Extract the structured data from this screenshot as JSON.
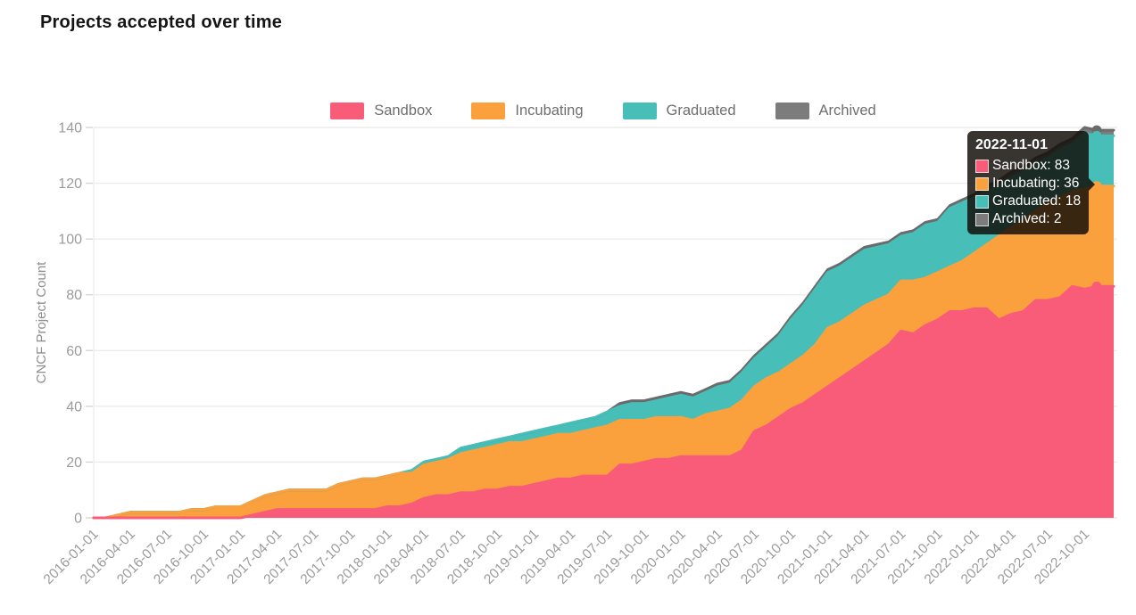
{
  "page": {
    "title": "Projects accepted over time"
  },
  "y_axis": {
    "title": "CNCF Project Count"
  },
  "tooltip": {
    "date": "2022-11-01",
    "rows": [
      {
        "label": "Sandbox",
        "value": 83
      },
      {
        "label": "Incubating",
        "value": 36
      },
      {
        "label": "Graduated",
        "value": 18
      },
      {
        "label": "Archived",
        "value": 2
      }
    ]
  },
  "chart_data": {
    "type": "area",
    "stacked": true,
    "title": "Projects accepted over time",
    "xlabel": "",
    "ylabel": "CNCF Project Count",
    "ylim": [
      0,
      140
    ],
    "y_ticks": [
      0,
      20,
      40,
      60,
      80,
      100,
      120,
      140
    ],
    "grid": "horizontal",
    "legend_position": "top",
    "x_tick_labels": [
      "2016-01-01",
      "2016-04-01",
      "2016-07-01",
      "2016-10-01",
      "2017-01-01",
      "2017-04-01",
      "2017-07-01",
      "2017-10-01",
      "2018-01-01",
      "2018-04-01",
      "2018-07-01",
      "2018-10-01",
      "2019-01-01",
      "2019-04-01",
      "2019-07-01",
      "2019-10-01",
      "2020-01-01",
      "2020-04-01",
      "2020-07-01",
      "2020-10-01",
      "2021-01-01",
      "2021-04-01",
      "2021-07-01",
      "2021-10-01",
      "2022-01-01",
      "2022-04-01",
      "2022-07-01",
      "2022-10-01"
    ],
    "categories": [
      "2016-01-01",
      "2016-02-01",
      "2016-03-01",
      "2016-04-01",
      "2016-05-01",
      "2016-06-01",
      "2016-07-01",
      "2016-08-01",
      "2016-09-01",
      "2016-10-01",
      "2016-11-01",
      "2016-12-01",
      "2017-01-01",
      "2017-02-01",
      "2017-03-01",
      "2017-04-01",
      "2017-05-01",
      "2017-06-01",
      "2017-07-01",
      "2017-08-01",
      "2017-09-01",
      "2017-10-01",
      "2017-11-01",
      "2017-12-01",
      "2018-01-01",
      "2018-02-01",
      "2018-03-01",
      "2018-04-01",
      "2018-05-01",
      "2018-06-01",
      "2018-07-01",
      "2018-08-01",
      "2018-09-01",
      "2018-10-01",
      "2018-11-01",
      "2018-12-01",
      "2019-01-01",
      "2019-02-01",
      "2019-03-01",
      "2019-04-01",
      "2019-05-01",
      "2019-06-01",
      "2019-07-01",
      "2019-08-01",
      "2019-09-01",
      "2019-10-01",
      "2019-11-01",
      "2019-12-01",
      "2020-01-01",
      "2020-02-01",
      "2020-03-01",
      "2020-04-01",
      "2020-05-01",
      "2020-06-01",
      "2020-07-01",
      "2020-08-01",
      "2020-09-01",
      "2020-10-01",
      "2020-11-01",
      "2020-12-01",
      "2021-01-01",
      "2021-02-01",
      "2021-03-01",
      "2021-04-01",
      "2021-05-01",
      "2021-06-01",
      "2021-07-01",
      "2021-08-01",
      "2021-09-01",
      "2021-10-01",
      "2021-11-01",
      "2021-12-01",
      "2022-01-01",
      "2022-02-01",
      "2022-03-01",
      "2022-04-01",
      "2022-05-01",
      "2022-06-01",
      "2022-07-01",
      "2022-08-01",
      "2022-09-01",
      "2022-10-01",
      "2022-11-01"
    ],
    "series": [
      {
        "name": "Sandbox",
        "color": "#F95C78",
        "values": [
          0,
          0,
          0,
          0,
          0,
          0,
          0,
          0,
          0,
          0,
          0,
          0,
          0,
          1,
          2,
          3,
          3,
          3,
          3,
          3,
          3,
          3,
          3,
          3,
          4,
          4,
          5,
          7,
          8,
          8,
          9,
          9,
          10,
          10,
          11,
          11,
          12,
          13,
          14,
          14,
          15,
          15,
          15,
          19,
          19,
          20,
          21,
          21,
          22,
          22,
          22,
          22,
          22,
          24,
          31,
          33,
          36,
          39,
          41,
          44,
          47,
          50,
          53,
          56,
          59,
          62,
          67,
          66,
          69,
          71,
          74,
          74,
          75,
          75,
          71,
          73,
          74,
          78,
          78,
          79,
          83,
          82,
          83
        ]
      },
      {
        "name": "Incubating",
        "color": "#FAA13D",
        "values": [
          0,
          0,
          1,
          2,
          2,
          2,
          2,
          2,
          3,
          3,
          4,
          4,
          4,
          5,
          6,
          6,
          7,
          7,
          7,
          7,
          9,
          10,
          11,
          11,
          11,
          12,
          11,
          12,
          12,
          13,
          14,
          15,
          15,
          16,
          16,
          16,
          16,
          16,
          16,
          16,
          16,
          17,
          18,
          16,
          16,
          15,
          15,
          15,
          14,
          13,
          15,
          16,
          17,
          18,
          16,
          17,
          16,
          16,
          17,
          18,
          21,
          20,
          20,
          20,
          19,
          18,
          18,
          19,
          17,
          17,
          16,
          18,
          20,
          23,
          30,
          31,
          33,
          32,
          35,
          36,
          34,
          36,
          36
        ]
      },
      {
        "name": "Graduated",
        "color": "#47BEB8",
        "values": [
          0,
          0,
          0,
          0,
          0,
          0,
          0,
          0,
          0,
          0,
          0,
          0,
          0,
          0,
          0,
          0,
          0,
          0,
          0,
          0,
          0,
          0,
          0,
          0,
          0,
          0,
          1,
          1,
          1,
          1,
          2,
          2,
          2,
          2,
          2,
          3,
          3,
          3,
          3,
          4,
          4,
          4,
          5,
          5,
          6,
          6,
          6,
          7,
          8,
          8,
          8,
          9,
          9,
          10,
          10,
          11,
          13,
          16,
          18,
          20,
          20,
          20,
          20,
          20,
          19,
          18,
          16,
          17,
          19,
          18,
          21,
          21,
          20,
          19,
          18,
          18,
          17,
          17,
          16,
          17,
          17,
          20,
          18
        ]
      },
      {
        "name": "Archived",
        "color": "#7C7C7C",
        "line_color": "#6B6B6B",
        "values": [
          0,
          0,
          0,
          0,
          0,
          0,
          0,
          0,
          0,
          0,
          0,
          0,
          0,
          0,
          0,
          0,
          0,
          0,
          0,
          0,
          0,
          0,
          0,
          0,
          0,
          0,
          0,
          0,
          0,
          0,
          0,
          0,
          0,
          0,
          0,
          0,
          0,
          0,
          0,
          0,
          0,
          0,
          0,
          1,
          1,
          1,
          1,
          1,
          1,
          1,
          1,
          1,
          1,
          1,
          1,
          1,
          1,
          1,
          1,
          1,
          1,
          1,
          1,
          1,
          1,
          1,
          1,
          1,
          1,
          1,
          1,
          1,
          1,
          2,
          2,
          2,
          2,
          2,
          2,
          2,
          2,
          2,
          2
        ]
      }
    ]
  },
  "colors": {
    "grid": "#ececec",
    "tick_dash": "#d6d6d6",
    "axis_text": "#9b9b9b",
    "axis_title": "#8e8e8e"
  }
}
